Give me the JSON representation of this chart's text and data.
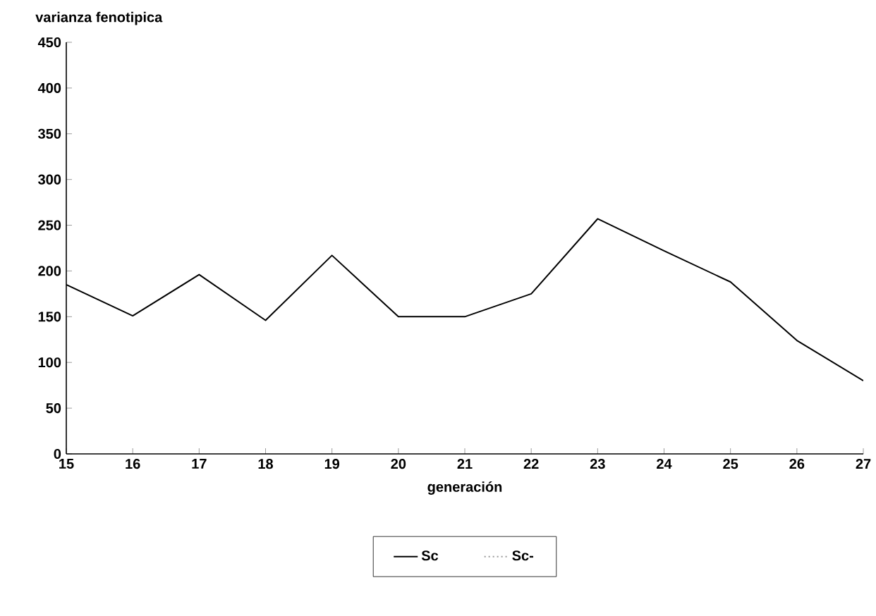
{
  "chart_data": {
    "type": "line",
    "ylabel": "varianza fenotipica",
    "xlabel": "generación",
    "x": [
      15,
      16,
      17,
      18,
      19,
      20,
      21,
      22,
      23,
      24,
      25,
      26,
      27
    ],
    "series": [
      {
        "name": "Sc",
        "color": "#000000",
        "line_style": "solid",
        "values": [
          185,
          151,
          196,
          146,
          217,
          150,
          150,
          175,
          257,
          222,
          188,
          124,
          80
        ]
      },
      {
        "name": "Sc-",
        "color": "#999999",
        "line_style": "dotted",
        "values": [
          null,
          null,
          null,
          null,
          null,
          null,
          null,
          null,
          null,
          null,
          null,
          null,
          null
        ]
      }
    ],
    "xlim": [
      15,
      27
    ],
    "xticks": [
      15,
      16,
      17,
      18,
      19,
      20,
      21,
      22,
      23,
      24,
      25,
      26,
      27
    ],
    "ylim": [
      0,
      450
    ],
    "yticks": [
      0,
      50,
      100,
      150,
      200,
      250,
      300,
      350,
      400,
      450
    ],
    "legend": "bottom",
    "marker": "none",
    "grid": false
  }
}
